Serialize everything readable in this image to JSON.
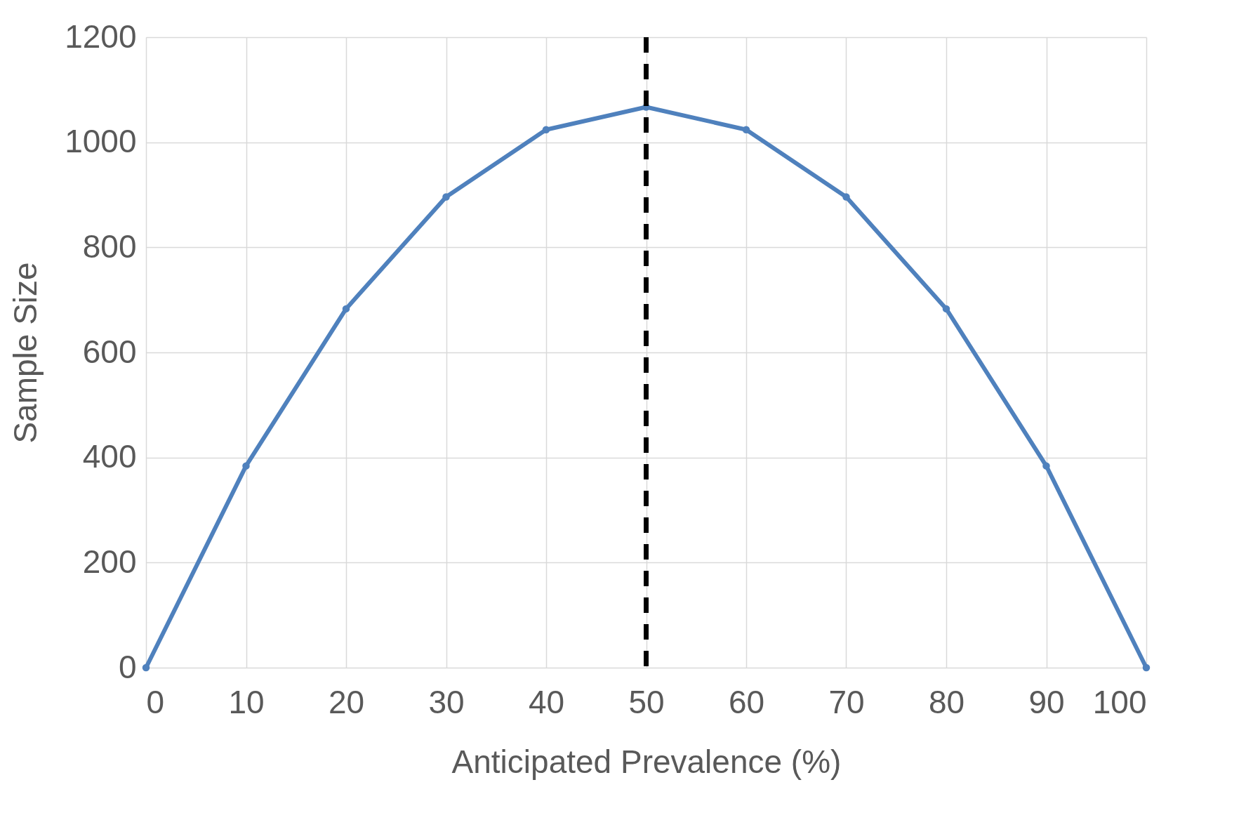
{
  "chart_data": {
    "type": "line",
    "xlabel": "Anticipated Prevalence (%)",
    "ylabel": "Sample Size",
    "x": [
      0,
      10,
      20,
      30,
      40,
      50,
      60,
      70,
      80,
      90,
      100
    ],
    "series": [
      {
        "color": "#4f81bd",
        "values": [
          0,
          384,
          683,
          896,
          1024,
          1067,
          1024,
          896,
          683,
          384,
          0
        ]
      }
    ],
    "xlim": [
      0,
      100
    ],
    "xticks": [
      0,
      10,
      20,
      30,
      40,
      50,
      60,
      70,
      80,
      90,
      100
    ],
    "ylim": [
      0,
      1200
    ],
    "yticks": [
      0,
      200,
      400,
      600,
      800,
      1000,
      1200
    ],
    "grid": true,
    "marker": "circle",
    "line_style": "solid",
    "legend": false,
    "ref_lines": [
      {
        "axis": "x",
        "value": 50,
        "color": "#000000",
        "line_style": "dashed"
      }
    ]
  }
}
